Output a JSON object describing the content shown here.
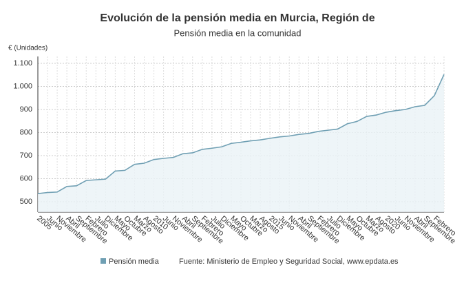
{
  "chart_data": {
    "type": "area",
    "title": "Evolución de la pensión media en Murcia, Región de",
    "subtitle": "Pensión media en la comunidad",
    "y_label": "€ (Unidades)",
    "source": "Fuente: Ministerio de Empleo y Seguridad Social, www.epdata.es",
    "categories": [
      "2005",
      "Junio",
      "Noviembre",
      "Abril",
      "Septiembre",
      "Febrero",
      "Julio",
      "Diciembre",
      "Mayo",
      "Octubre",
      "Marzo",
      "Agosto",
      "2010",
      "Junio",
      "Noviembre",
      "Abril",
      "Septiembre",
      "Febrero",
      "Julio",
      "Diciembre",
      "Mayo",
      "Octubre",
      "Marzo",
      "Agosto",
      "2015",
      "Junio",
      "Noviembre",
      "Abril",
      "Septiembre",
      "Febrero",
      "Julio",
      "Diciembre",
      "Mayo",
      "Octubre",
      "Marzo",
      "Agosto",
      "2020",
      "Junio",
      "Noviembre",
      "Abril",
      "Septiembre",
      "Febrero",
      null
    ],
    "series": [
      {
        "name": "Pensión media",
        "color": "#6f9fb3",
        "values": [
          535,
          540,
          542,
          566,
          569,
          592,
          595,
          598,
          633,
          636,
          662,
          667,
          683,
          688,
          692,
          708,
          712,
          727,
          732,
          738,
          753,
          758,
          764,
          768,
          775,
          781,
          785,
          792,
          796,
          805,
          810,
          815,
          838,
          848,
          870,
          876,
          888,
          895,
          900,
          912,
          918,
          960,
          1052
        ]
      }
    ],
    "ylim": [
      455,
      1130
    ],
    "yticks": [
      500,
      600,
      700,
      800,
      900,
      {
        "value": 1000,
        "label": "1.000"
      },
      {
        "value": 1100,
        "label": "1.100"
      }
    ],
    "grid": true
  }
}
